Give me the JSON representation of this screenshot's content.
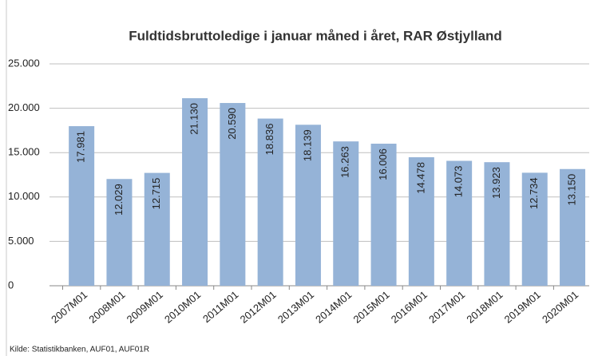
{
  "chart_data": {
    "type": "bar",
    "title": "Fuldtidsbruttoledige i januar måned i året, RAR Østjylland",
    "categories": [
      "2007M01",
      "2008M01",
      "2009M01",
      "2010M01",
      "2011M01",
      "2012M01",
      "2013M01",
      "2014M01",
      "2015M01",
      "2016M01",
      "2017M01",
      "2018M01",
      "2019M01",
      "2020M01"
    ],
    "values": [
      17981,
      12029,
      12715,
      21130,
      20590,
      18836,
      18139,
      16263,
      16006,
      14478,
      14073,
      13923,
      12734,
      13150
    ],
    "value_labels": [
      "17.981",
      "12.029",
      "12.715",
      "21.130",
      "20.590",
      "18.836",
      "18.139",
      "16.263",
      "16.006",
      "14.478",
      "14.073",
      "13.923",
      "12.734",
      "13.150"
    ],
    "color": "#95b3d7",
    "ylim": [
      0,
      25000
    ],
    "yticks": [
      0,
      {
        "value": 5000,
        "label": "5.000"
      },
      {
        "value": 10000,
        "label": "10.000"
      },
      {
        "value": 15000,
        "label": "15.000"
      },
      {
        "value": 20000,
        "label": "20.000"
      },
      {
        "value": 25000,
        "label": "25.000"
      }
    ],
    "grid": true,
    "source": "Kilde: Statistikbanken, AUF01, AUF01R"
  }
}
